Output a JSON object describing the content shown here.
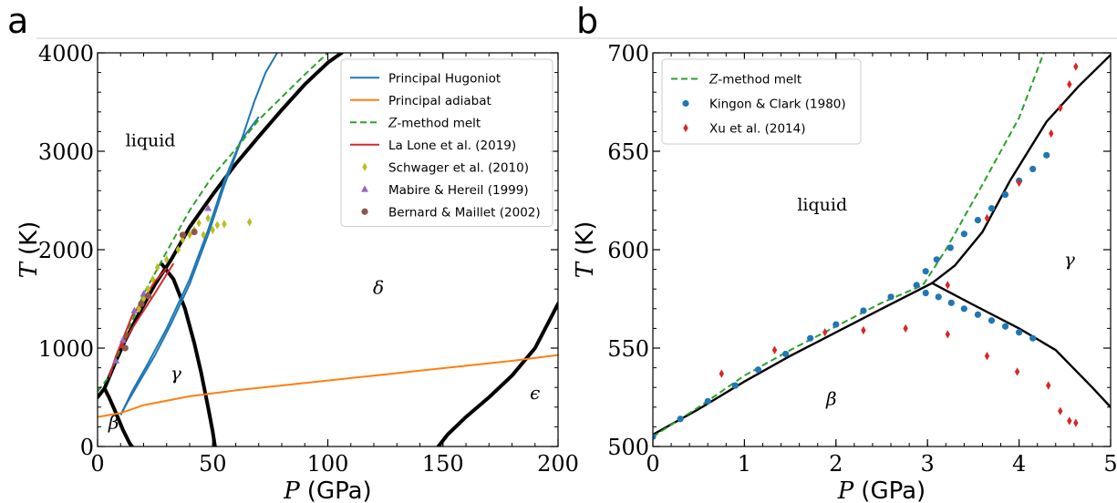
{
  "panels": [
    {
      "id": "a",
      "panel_label": "a",
      "chart_data": {
        "type": "line",
        "xlabel_var": "P",
        "xlabel_unit": "(GPa)",
        "ylabel_var": "T",
        "ylabel_unit": "(K)",
        "xlim": [
          0,
          200
        ],
        "ylim": [
          0,
          4000
        ],
        "xticks": [
          0,
          50,
          100,
          150,
          200
        ],
        "yticks": [
          0,
          1000,
          2000,
          3000,
          4000
        ],
        "grid": false,
        "legend_position": "top-right",
        "annotations": [
          {
            "text": "liquid",
            "x": 23,
            "y": 3050,
            "italic": false
          },
          {
            "text": "δ",
            "x": 122,
            "y": 1550,
            "italic": true
          },
          {
            "text": "γ",
            "x": 34,
            "y": 680,
            "italic": true
          },
          {
            "text": "β",
            "x": 7,
            "y": 180,
            "italic": true
          },
          {
            "text": "ϵ",
            "x": 190,
            "y": 480,
            "italic": true
          }
        ],
        "boundaries": [
          [
            [
              0,
              500
            ],
            [
              3,
              590
            ],
            [
              8,
              870
            ],
            [
              12,
              1080
            ],
            [
              18,
              1350
            ],
            [
              25,
              1650
            ],
            [
              32,
              1900
            ],
            [
              40,
              2230
            ],
            [
              50,
              2560
            ],
            [
              60,
              2870
            ],
            [
              70,
              3150
            ],
            [
              80,
              3420
            ],
            [
              90,
              3680
            ],
            [
              100,
              3900
            ],
            [
              106,
              4000
            ]
          ],
          [
            [
              3,
              590
            ],
            [
              5,
              500
            ],
            [
              8,
              340
            ],
            [
              11,
              170
            ],
            [
              14,
              30
            ],
            [
              15,
              0
            ]
          ],
          [
            [
              28,
              1850
            ],
            [
              33,
              1700
            ],
            [
              38,
              1400
            ],
            [
              42,
              1050
            ],
            [
              45,
              750
            ],
            [
              48,
              400
            ],
            [
              50,
              150
            ],
            [
              51,
              0
            ]
          ],
          [
            [
              148,
              0
            ],
            [
              152,
              120
            ],
            [
              160,
              300
            ],
            [
              170,
              500
            ],
            [
              180,
              720
            ],
            [
              190,
              1000
            ],
            [
              200,
              1450
            ]
          ]
        ],
        "series": [
          {
            "name": "Principal Hugoniot",
            "color": "#1f77b4",
            "style": "solid",
            "points": [
              [
                10,
                320
              ],
              [
                13,
                450
              ],
              [
                18,
                650
              ],
              [
                25,
                930
              ],
              [
                32,
                1250
              ],
              [
                40,
                1650
              ],
              [
                48,
                2150
              ],
              [
                55,
                2650
              ],
              [
                63,
                3150
              ],
              [
                68,
                3500
              ],
              [
                73,
                3800
              ],
              [
                78,
                4000
              ]
            ]
          },
          {
            "name": "",
            "color": "#1f77b4",
            "style": "solid",
            "points": [
              [
                10,
                320
              ],
              [
                15,
                560
              ],
              [
                22,
                850
              ],
              [
                30,
                1200
              ],
              [
                40,
                1700
              ],
              [
                48,
                2200
              ],
              [
                55,
                2700
              ],
              [
                62,
                3100
              ],
              [
                70,
                3350
              ]
            ]
          },
          {
            "name": "Principal adiabat",
            "color": "#ff7f0e",
            "style": "solid",
            "points": [
              [
                0,
                300
              ],
              [
                10,
                340
              ],
              [
                20,
                420
              ],
              [
                40,
                510
              ],
              [
                60,
                570
              ],
              [
                80,
                620
              ],
              [
                100,
                670
              ],
              [
                120,
                720
              ],
              [
                140,
                770
              ],
              [
                160,
                820
              ],
              [
                180,
                870
              ],
              [
                200,
                930
              ]
            ]
          },
          {
            "name": "Z-method melt",
            "color": "#2ca02c",
            "style": "dashed",
            "points": [
              [
                0,
                560
              ],
              [
                5,
                710
              ],
              [
                10,
                1000
              ],
              [
                20,
                1550
              ],
              [
                30,
                1980
              ],
              [
                40,
                2400
              ],
              [
                50,
                2750
              ],
              [
                60,
                3020
              ],
              [
                70,
                3320
              ],
              [
                80,
                3550
              ],
              [
                90,
                3780
              ],
              [
                100,
                4000
              ]
            ]
          },
          {
            "name": "La Lone et al. (2019)",
            "color": "#d62728",
            "style": "solid",
            "points": [
              [
                5,
                700
              ],
              [
                8,
                920
              ],
              [
                12,
                1150
              ],
              [
                15,
                1330
              ],
              [
                20,
                1500
              ],
              [
                25,
                1680
              ],
              [
                30,
                1810
              ]
            ]
          },
          {
            "name": "",
            "color": "#d62728",
            "style": "solid",
            "points": [
              [
                10,
                1000
              ],
              [
                15,
                1200
              ],
              [
                20,
                1380
              ],
              [
                25,
                1560
              ],
              [
                30,
                1750
              ],
              [
                33,
                1860
              ]
            ]
          }
        ],
        "scatter": [
          {
            "name": "Schwager et al. (2010)",
            "color": "#bcbd22",
            "marker": "diamond",
            "points": [
              [
                18,
                1400
              ],
              [
                20,
                1500
              ],
              [
                22,
                1600
              ],
              [
                24,
                1700
              ],
              [
                26,
                1820
              ],
              [
                30,
                1900
              ],
              [
                35,
                2000
              ],
              [
                37,
                2100
              ],
              [
                40,
                2150
              ],
              [
                42,
                2200
              ],
              [
                44,
                2270
              ],
              [
                46,
                2150
              ],
              [
                50,
                2200
              ],
              [
                52,
                2250
              ],
              [
                55,
                2260
              ],
              [
                66,
                2280
              ],
              [
                48,
                2320
              ]
            ]
          },
          {
            "name": "Mabire & Hereil (1999)",
            "color": "#9467bd",
            "marker": "triangle",
            "points": [
              [
                8,
                870
              ],
              [
                11,
                1080
              ],
              [
                16,
                1380
              ],
              [
                20,
                1550
              ],
              [
                48,
                2420
              ]
            ]
          },
          {
            "name": "Bernard & Maillet (2002)",
            "color": "#8c564b",
            "marker": "circle",
            "points": [
              [
                12,
                1000
              ],
              [
                19,
                1450
              ],
              [
                22,
                1530
              ],
              [
                37,
                2150
              ],
              [
                42,
                2180
              ]
            ]
          }
        ]
      }
    },
    {
      "id": "b",
      "panel_label": "b",
      "chart_data": {
        "type": "line",
        "xlabel_var": "P",
        "xlabel_unit": "(GPa)",
        "ylabel_var": "T",
        "ylabel_unit": "(K)",
        "xlim": [
          0,
          5
        ],
        "ylim": [
          500,
          700
        ],
        "xticks": [
          0,
          1,
          2,
          3,
          4,
          5
        ],
        "yticks": [
          500,
          550,
          600,
          650,
          700
        ],
        "grid": false,
        "legend_position": "top-left",
        "annotations": [
          {
            "text": "liquid",
            "x": 1.85,
            "y": 620,
            "italic": false
          },
          {
            "text": "γ",
            "x": 4.55,
            "y": 592,
            "italic": true
          },
          {
            "text": "β",
            "x": 1.95,
            "y": 521,
            "italic": true
          }
        ],
        "boundaries": [
          [
            [
              0,
              506
            ],
            [
              0.5,
              519
            ],
            [
              1,
              533
            ],
            [
              1.5,
              546
            ],
            [
              2,
              558
            ],
            [
              2.5,
              570
            ],
            [
              3.05,
              583
            ]
          ],
          [
            [
              3.05,
              583
            ],
            [
              3.3,
              592
            ],
            [
              3.6,
              609
            ],
            [
              3.9,
              635
            ],
            [
              4.3,
              665
            ],
            [
              4.65,
              683
            ],
            [
              5,
              699
            ]
          ],
          [
            [
              3.05,
              583
            ],
            [
              3.5,
              572
            ],
            [
              4,
              560
            ],
            [
              4.4,
              549
            ],
            [
              4.8,
              530
            ],
            [
              5,
              520
            ]
          ]
        ],
        "series": [
          {
            "name": "Z-method melt",
            "color": "#2ca02c",
            "style": "dashed",
            "points": [
              [
                0,
                505
              ],
              [
                0.5,
                520
              ],
              [
                1,
                536
              ],
              [
                1.5,
                549
              ],
              [
                2,
                561
              ],
              [
                2.5,
                573
              ],
              [
                2.95,
                582
              ],
              [
                3.2,
                600
              ],
              [
                3.6,
                633
              ],
              [
                4,
                667
              ],
              [
                4.27,
                700
              ]
            ]
          }
        ],
        "scatter": [
          {
            "name": "Kingon & Clark (1980)",
            "color": "#1f77b4",
            "marker": "circle",
            "points": [
              [
                0,
                505
              ],
              [
                0.3,
                514
              ],
              [
                0.6,
                523
              ],
              [
                0.9,
                531
              ],
              [
                1.15,
                539
              ],
              [
                1.45,
                547
              ],
              [
                1.72,
                555
              ],
              [
                2.0,
                562
              ],
              [
                2.3,
                569
              ],
              [
                2.6,
                576
              ],
              [
                2.88,
                582
              ],
              [
                2.98,
                589
              ],
              [
                3.1,
                595
              ],
              [
                3.25,
                601
              ],
              [
                3.4,
                608
              ],
              [
                3.55,
                615
              ],
              [
                3.7,
                621
              ],
              [
                3.85,
                628
              ],
              [
                4.0,
                635
              ],
              [
                4.15,
                641
              ],
              [
                4.3,
                648
              ],
              [
                2.98,
                578
              ],
              [
                3.12,
                576
              ],
              [
                3.26,
                573
              ],
              [
                3.4,
                570
              ],
              [
                3.55,
                567
              ],
              [
                3.7,
                564
              ],
              [
                3.85,
                561
              ],
              [
                4.0,
                558
              ],
              [
                4.15,
                555
              ]
            ]
          },
          {
            "name": "Xu et al. (2014)",
            "color": "#d62728",
            "marker": "diamond",
            "points": [
              [
                0.75,
                537
              ],
              [
                1.33,
                549
              ],
              [
                1.88,
                558
              ],
              [
                2.3,
                559
              ],
              [
                2.76,
                560
              ],
              [
                3.22,
                582
              ],
              [
                3.22,
                557
              ],
              [
                3.65,
                546
              ],
              [
                3.98,
                538
              ],
              [
                4.32,
                531
              ],
              [
                4.45,
                518
              ],
              [
                4.55,
                513
              ],
              [
                4.62,
                512
              ],
              [
                3.65,
                616
              ],
              [
                4.0,
                634
              ],
              [
                4.35,
                659
              ],
              [
                4.45,
                672
              ],
              [
                4.55,
                684
              ],
              [
                4.62,
                693
              ]
            ]
          }
        ]
      }
    }
  ]
}
